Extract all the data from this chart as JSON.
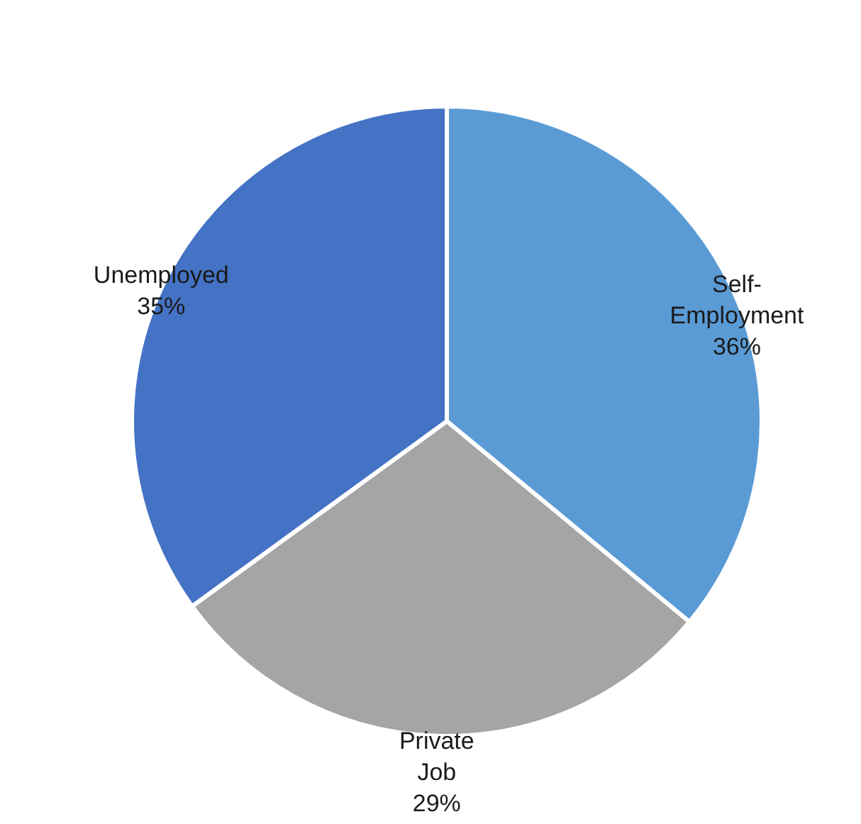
{
  "chart_data": {
    "type": "pie",
    "categories": [
      "Self-Employment",
      "Private Job",
      "Unemployed"
    ],
    "values": [
      36,
      29,
      35
    ],
    "colors": [
      "#5b9bd5",
      "#a5a5a5",
      "#4472c4"
    ],
    "value_labels": [
      "36%",
      "29%",
      "35%"
    ]
  }
}
